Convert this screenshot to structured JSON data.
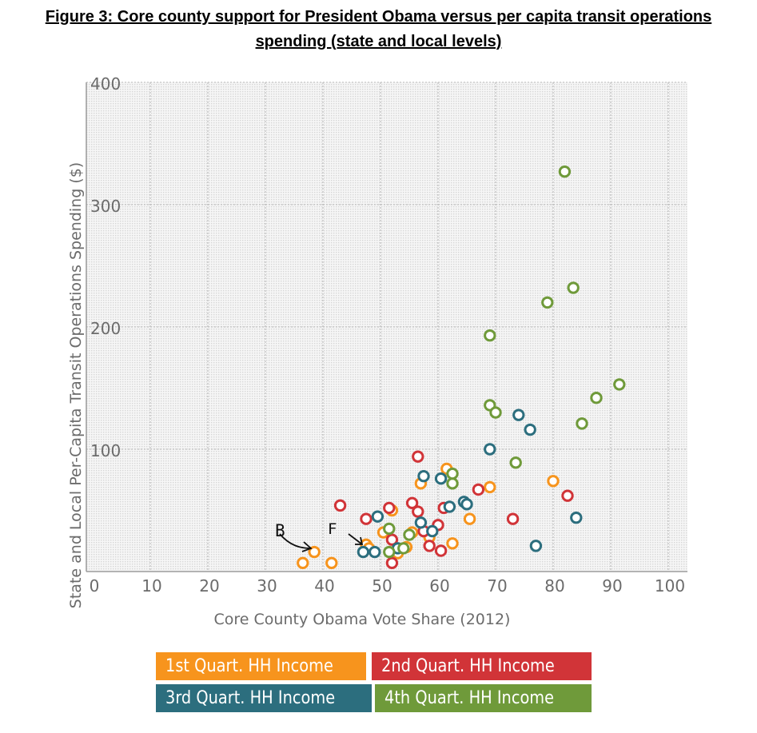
{
  "figure": {
    "title_line1": "Figure 3: Core county support for President Obama versus per capita transit operations",
    "title_line2": "spending (state and local levels)"
  },
  "annotations": [
    "B",
    "F"
  ],
  "chart_data": {
    "type": "scatter",
    "xlabel": "Core County Obama Vote Share (2012)",
    "ylabel": "State and Local Per-Capita Transit Operations Spending ($)",
    "xlim": [
      0,
      100
    ],
    "ylim": [
      0,
      400
    ],
    "x_ticks": [
      "0",
      "10",
      "20",
      "30",
      "40",
      "50",
      "60",
      "70",
      "80",
      "90",
      "100"
    ],
    "y_ticks": [
      "100",
      "200",
      "300",
      "400"
    ],
    "y_tick_values": [
      100,
      200,
      300,
      400
    ],
    "grid": true,
    "legend_position": "bottom",
    "series": [
      {
        "name": "1st Quart. HH Income",
        "color": "#f7941d",
        "points": [
          [
            36.5,
            7
          ],
          [
            38.5,
            16
          ],
          [
            41.5,
            7
          ],
          [
            47.5,
            22
          ],
          [
            48,
            19
          ],
          [
            50.5,
            32
          ],
          [
            52,
            50
          ],
          [
            53,
            15
          ],
          [
            54.5,
            20
          ],
          [
            55.5,
            32
          ],
          [
            57,
            72
          ],
          [
            58.5,
            28
          ],
          [
            61.5,
            84
          ],
          [
            62.5,
            23
          ],
          [
            65.5,
            43
          ],
          [
            69,
            69
          ],
          [
            80,
            74
          ]
        ]
      },
      {
        "name": "2nd Quart. HH Income",
        "color": "#d13438",
        "points": [
          [
            43,
            54
          ],
          [
            47.5,
            43
          ],
          [
            51.5,
            52
          ],
          [
            52,
            7
          ],
          [
            52,
            26
          ],
          [
            55.5,
            56
          ],
          [
            56.5,
            49
          ],
          [
            56.5,
            94
          ],
          [
            57.5,
            33
          ],
          [
            58.5,
            21
          ],
          [
            60,
            38
          ],
          [
            60.5,
            17
          ],
          [
            61,
            52
          ],
          [
            67,
            67
          ],
          [
            73,
            43
          ],
          [
            82.5,
            62
          ]
        ]
      },
      {
        "name": "3rd Quart. HH Income",
        "color": "#2c6e7e",
        "points": [
          [
            47,
            16
          ],
          [
            49,
            16
          ],
          [
            49.5,
            45
          ],
          [
            53,
            19
          ],
          [
            57,
            40
          ],
          [
            57.5,
            78
          ],
          [
            59,
            33
          ],
          [
            60.5,
            76
          ],
          [
            62,
            53
          ],
          [
            64.5,
            57
          ],
          [
            65,
            55
          ],
          [
            69,
            100
          ],
          [
            74,
            128
          ],
          [
            76,
            116
          ],
          [
            77,
            21
          ],
          [
            84,
            44
          ]
        ]
      },
      {
        "name": "4th Quart. HH Income",
        "color": "#6f9a3a",
        "points": [
          [
            51.5,
            16
          ],
          [
            51.5,
            35
          ],
          [
            54,
            19
          ],
          [
            55,
            30
          ],
          [
            62.5,
            72
          ],
          [
            62.5,
            80
          ],
          [
            69,
            136
          ],
          [
            69,
            193
          ],
          [
            70,
            130
          ],
          [
            73.5,
            89
          ],
          [
            79,
            220
          ],
          [
            82,
            327
          ],
          [
            83.5,
            232
          ],
          [
            85,
            121
          ],
          [
            87.5,
            142
          ],
          [
            91.5,
            153
          ]
        ]
      }
    ]
  }
}
